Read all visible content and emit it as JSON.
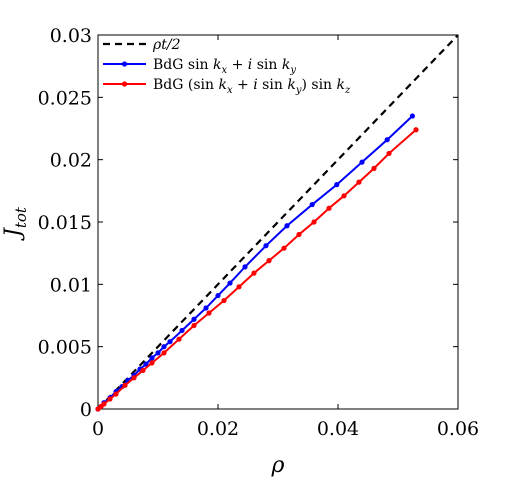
{
  "chart_data": {
    "type": "line",
    "title": "",
    "xlabel": "ρ",
    "ylabel": {
      "main": "J",
      "sub": "tot"
    },
    "xlim": [
      0,
      0.06
    ],
    "ylim": [
      0,
      0.03
    ],
    "xticks": [
      0,
      0.02,
      0.04,
      0.06
    ],
    "xtick_labels": [
      "0",
      "0.02",
      "0.04",
      "0.06"
    ],
    "yticks": [
      0,
      0.005,
      0.01,
      0.015,
      0.02,
      0.025,
      0.03
    ],
    "ytick_labels": [
      "0",
      "0.005",
      "0.01",
      "0.015",
      "0.02",
      "0.025",
      "0.03"
    ],
    "grid": false,
    "legend_position": "top-left",
    "series": [
      {
        "name": "ρt/2",
        "legend_parts": [
          {
            "t": "ρt/2",
            "c": "it"
          }
        ],
        "color": "#000000",
        "style": "dashed",
        "markers": false,
        "x": [
          0,
          0.06
        ],
        "y": [
          0,
          0.03
        ]
      },
      {
        "name": "BdG sin kx + i sin ky",
        "legend_parts": [
          {
            "t": "BdG sin ",
            "c": ""
          },
          {
            "t": "k",
            "c": "it"
          },
          {
            "t": "x",
            "c": "sub"
          },
          {
            "t": " + ",
            "c": ""
          },
          {
            "t": "i",
            "c": "it"
          },
          {
            "t": " sin ",
            "c": ""
          },
          {
            "t": "k",
            "c": "it"
          },
          {
            "t": "y",
            "c": "sub"
          }
        ],
        "color": "#0000ff",
        "style": "solid",
        "markers": true,
        "x": [
          0,
          0.0005,
          0.001,
          0.002,
          0.003,
          0.004,
          0.005,
          0.006,
          0.007,
          0.008,
          0.009,
          0.01,
          0.011,
          0.012,
          0.014,
          0.016,
          0.018,
          0.02,
          0.022,
          0.0245,
          0.028,
          0.0315,
          0.0357,
          0.0398,
          0.044,
          0.0482,
          0.0524
        ],
        "y": [
          0,
          0.0002,
          0.0005,
          0.0009,
          0.0014,
          0.0018,
          0.0023,
          0.0027,
          0.0032,
          0.0036,
          0.0041,
          0.0045,
          0.005,
          0.0054,
          0.0063,
          0.0072,
          0.0081,
          0.0091,
          0.0101,
          0.0114,
          0.0131,
          0.0147,
          0.0164,
          0.018,
          0.0198,
          0.0216,
          0.0235
        ]
      },
      {
        "name": "BdG (sin kx + i sin ky) sin kz",
        "legend_parts": [
          {
            "t": "BdG (sin ",
            "c": ""
          },
          {
            "t": "k",
            "c": "it"
          },
          {
            "t": "x",
            "c": "sub"
          },
          {
            "t": " + ",
            "c": ""
          },
          {
            "t": "i",
            "c": "it"
          },
          {
            "t": " sin ",
            "c": ""
          },
          {
            "t": "k",
            "c": "it"
          },
          {
            "t": "y",
            "c": "sub"
          },
          {
            "t": ") sin ",
            "c": ""
          },
          {
            "t": "k",
            "c": "it"
          },
          {
            "t": "z",
            "c": "sub"
          }
        ],
        "color": "#ff0000",
        "style": "solid",
        "markers": true,
        "x": [
          0,
          0.0005,
          0.001,
          0.002,
          0.003,
          0.0045,
          0.006,
          0.0075,
          0.009,
          0.011,
          0.0135,
          0.016,
          0.0185,
          0.021,
          0.0235,
          0.026,
          0.0285,
          0.031,
          0.0335,
          0.036,
          0.0385,
          0.041,
          0.0435,
          0.046,
          0.0485,
          0.053
        ],
        "y": [
          0,
          0.0002,
          0.0004,
          0.0008,
          0.0012,
          0.0019,
          0.0025,
          0.0031,
          0.0037,
          0.0045,
          0.0056,
          0.0067,
          0.0077,
          0.0087,
          0.0098,
          0.0109,
          0.0119,
          0.0129,
          0.014,
          0.015,
          0.0161,
          0.0171,
          0.0182,
          0.0193,
          0.0205,
          0.0224
        ]
      }
    ]
  }
}
